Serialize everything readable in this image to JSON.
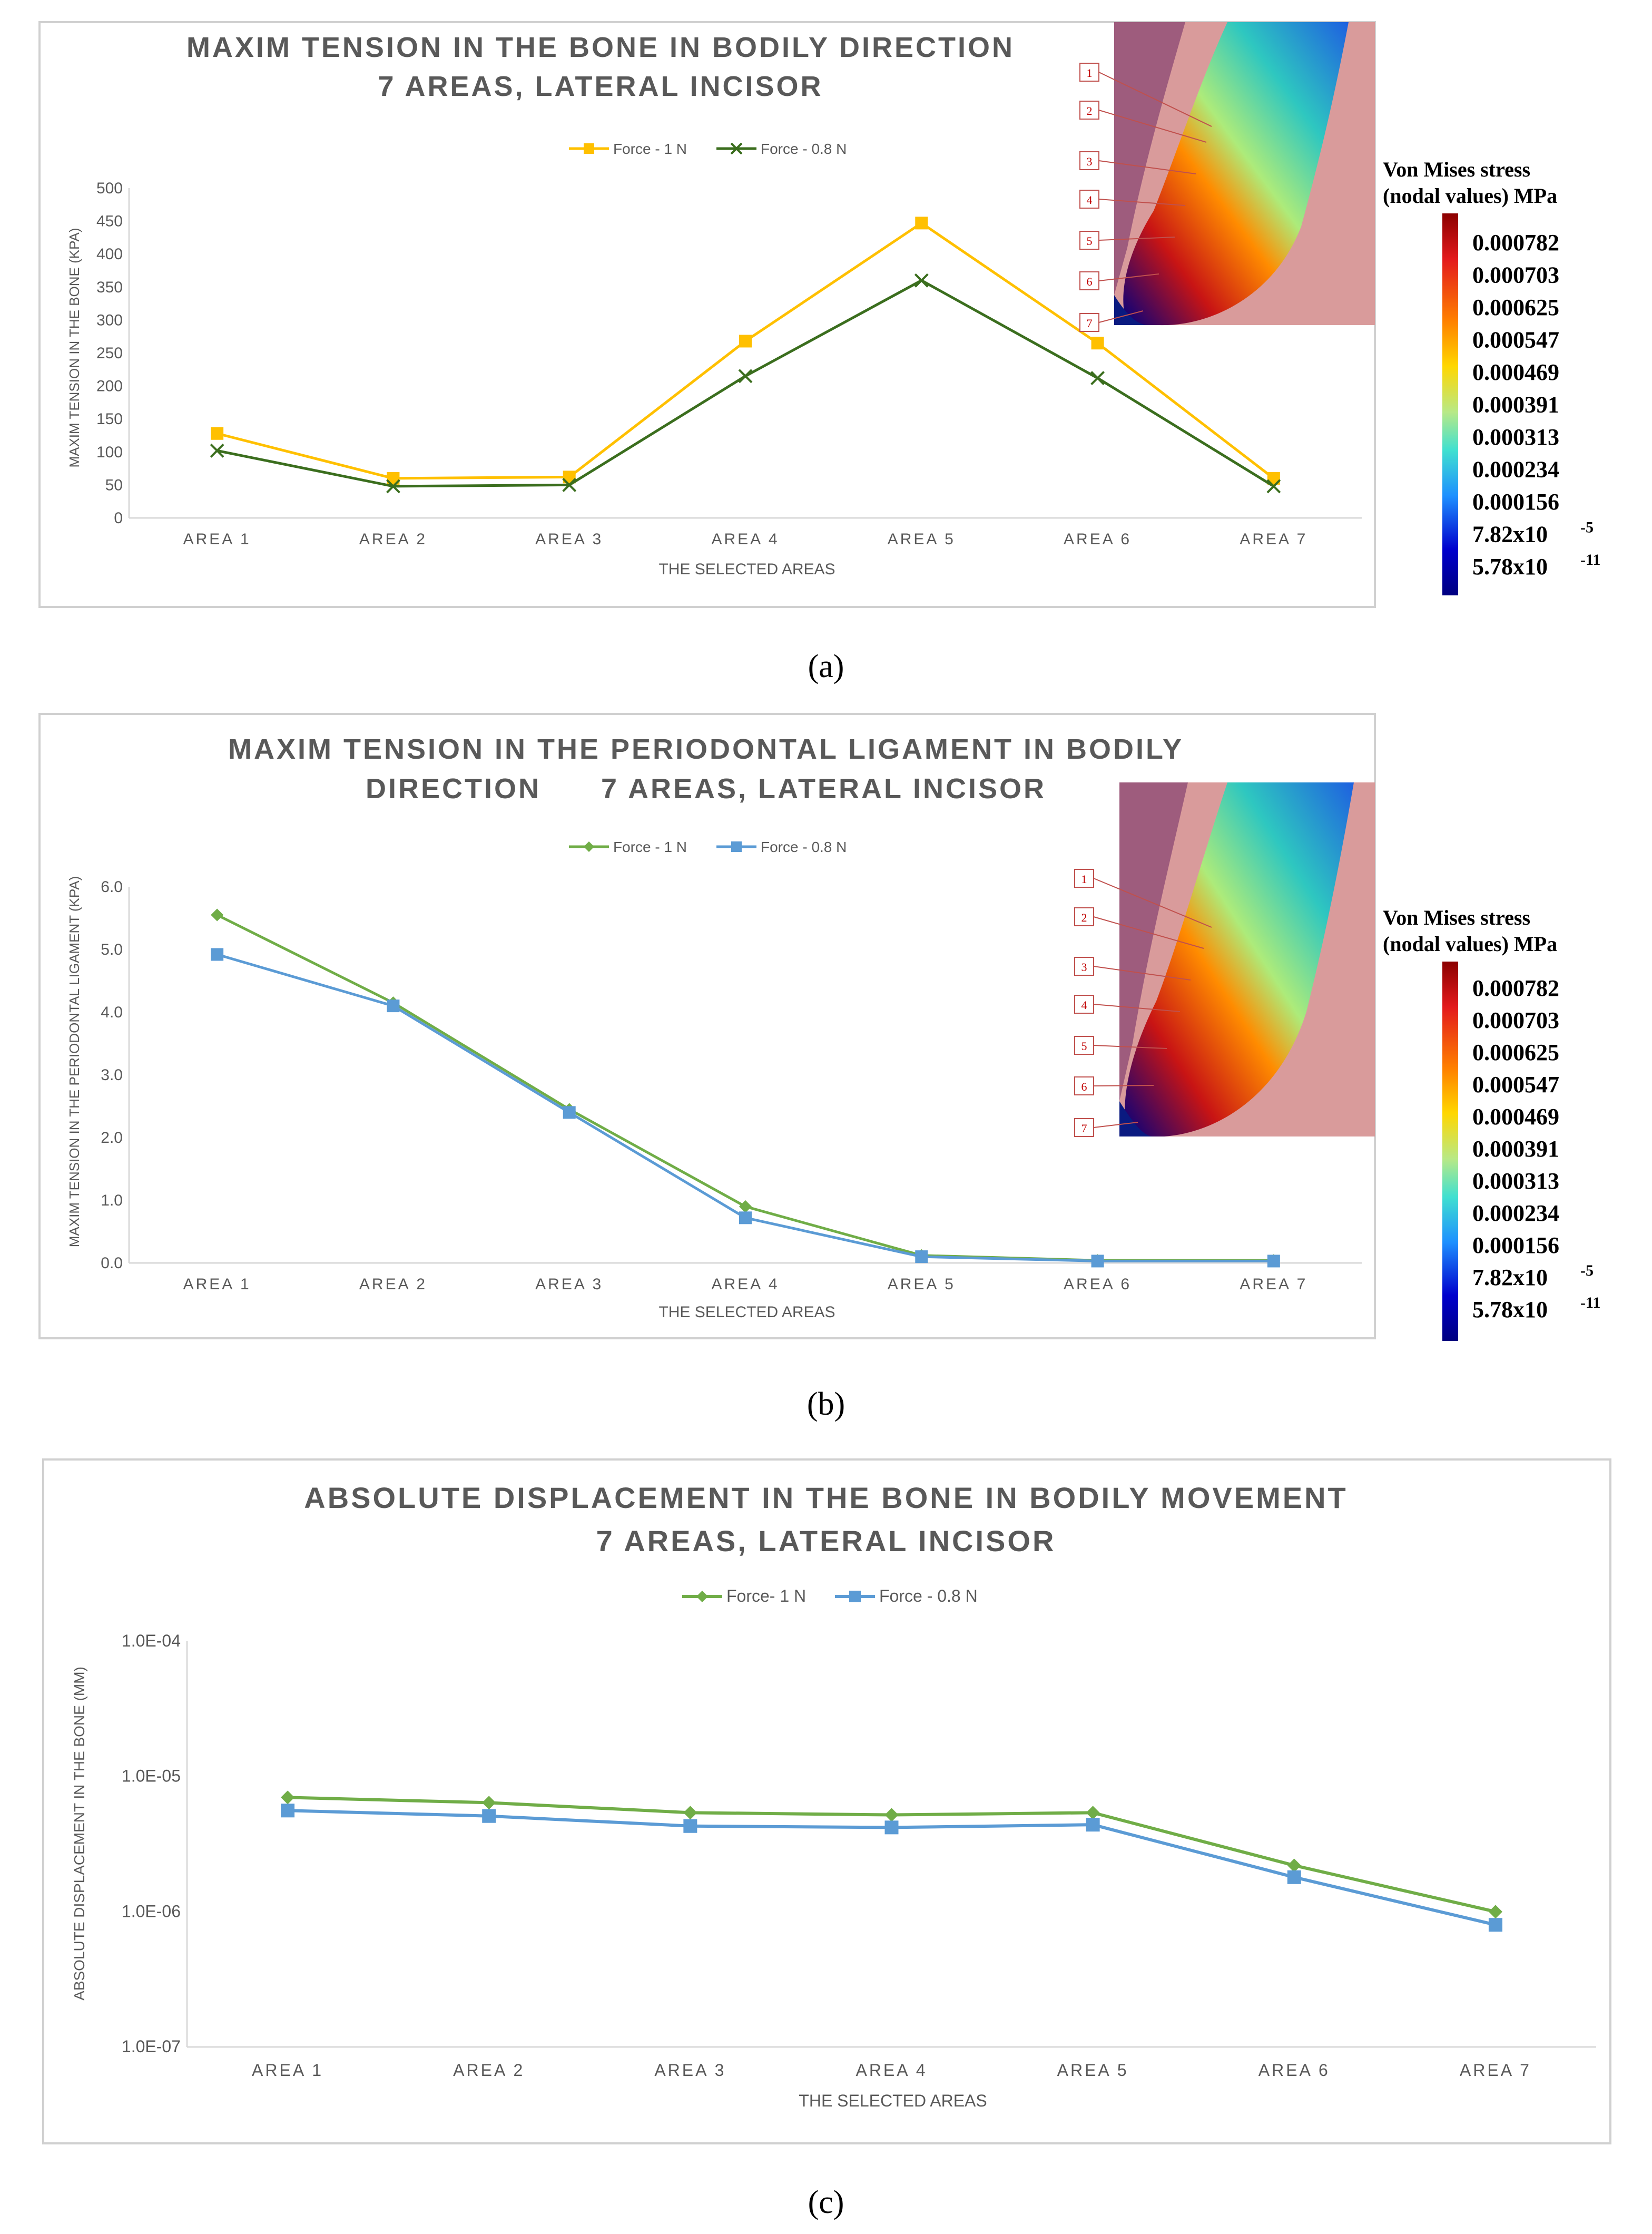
{
  "chart_data": [
    {
      "type": "line",
      "panel_label": "(a)",
      "title_lines": [
        "MAXIM TENSION IN THE BONE IN BODILY DIRECTION",
        "7 AREAS, LATERAL INCISOR"
      ],
      "xlabel": "THE SELECTED AREAS",
      "ylabel": "MAXIM TENSION IN THE BONE (KPA)",
      "categories": [
        "AREA 1",
        "AREA 2",
        "AREA 3",
        "AREA 4",
        "AREA 5",
        "AREA 6",
        "AREA 7"
      ],
      "ylim": [
        0,
        500
      ],
      "yticks": [
        "0",
        "50",
        "100",
        "150",
        "200",
        "250",
        "300",
        "350",
        "400",
        "450",
        "500"
      ],
      "yscale": "linear",
      "series": [
        {
          "name": "Force - 1 N",
          "color": "#FFC000",
          "marker": "square",
          "values": [
            128,
            60,
            62,
            268,
            447,
            265,
            60
          ]
        },
        {
          "name": "Force - 0.8 N",
          "color": "#3B6E1E",
          "marker": "x",
          "values": [
            102,
            48,
            50,
            215,
            360,
            212,
            48
          ]
        }
      ],
      "legend": "top"
    },
    {
      "type": "line",
      "panel_label": "(b)",
      "title_lines": [
        "MAXIM TENSION IN THE PERIODONTAL LIGAMENT IN BODILY",
        "DIRECTION      7 AREAS, LATERAL INCISOR"
      ],
      "xlabel": "THE SELECTED AREAS",
      "ylabel": "MAXIM TENSION IN THE PERIODONTAL LIGAMENT (KPA)",
      "categories": [
        "AREA 1",
        "AREA 2",
        "AREA 3",
        "AREA 4",
        "AREA 5",
        "AREA 6",
        "AREA 7"
      ],
      "ylim": [
        0,
        6
      ],
      "yticks": [
        "0.0",
        "1.0",
        "2.0",
        "3.0",
        "4.0",
        "5.0",
        "6.0"
      ],
      "yscale": "linear",
      "series": [
        {
          "name": "Force - 1 N",
          "color": "#70AD47",
          "marker": "diamond",
          "values": [
            5.55,
            4.15,
            2.45,
            0.9,
            0.12,
            0.04,
            0.04
          ]
        },
        {
          "name": "Force - 0.8 N",
          "color": "#5B9BD5",
          "marker": "square",
          "values": [
            4.92,
            4.1,
            2.4,
            0.72,
            0.1,
            0.03,
            0.03
          ]
        }
      ],
      "legend": "top"
    },
    {
      "type": "line",
      "panel_label": "(c)",
      "title_lines": [
        "ABSOLUTE DISPLACEMENT IN THE BONE IN BODILY MOVEMENT",
        "7 AREAS, LATERAL INCISOR"
      ],
      "xlabel": "THE SELECTED AREAS",
      "ylabel": "ABSOLUTE DISPLACEMENT IN THE BONE (MM)",
      "categories": [
        "AREA 1",
        "AREA 2",
        "AREA 3",
        "AREA 4",
        "AREA 5",
        "AREA 6",
        "AREA 7"
      ],
      "ylim": [
        1e-07,
        0.0001
      ],
      "yticks": [
        "1.0E-07",
        "1.0E-06",
        "1.0E-05",
        "1.0E-04"
      ],
      "yscale": "log",
      "series": [
        {
          "name": "Force- 1 N",
          "color": "#70AD47",
          "marker": "diamond",
          "values": [
            7e-06,
            6.4e-06,
            5.4e-06,
            5.2e-06,
            5.4e-06,
            2.2e-06,
            1e-06
          ]
        },
        {
          "name": "Force - 0.8 N",
          "color": "#5B9BD5",
          "marker": "square",
          "values": [
            5.6e-06,
            5.1e-06,
            4.3e-06,
            4.2e-06,
            4.4e-06,
            1.8e-06,
            8e-07
          ]
        }
      ],
      "legend": "top"
    }
  ],
  "insets": [
    {
      "area_labels": [
        "1",
        "2",
        "3",
        "4",
        "5",
        "6",
        "7"
      ],
      "colorbar_title": [
        "Von Mises stress",
        "(nodal values) MPa"
      ],
      "colorbar_values": [
        "0.000782",
        "0.000703",
        "0.000625",
        "0.000547",
        "0.000469",
        "0.000391",
        "0.000313",
        "0.000234",
        "0.000156",
        "7.82x10",
        "5.78x10"
      ],
      "colorbar_exponents": [
        "-5",
        "-11"
      ]
    },
    {
      "area_labels": [
        "1",
        "2",
        "3",
        "4",
        "5",
        "6",
        "7"
      ],
      "colorbar_title": [
        "Von Mises stress",
        "(nodal values) MPa"
      ],
      "colorbar_values": [
        "0.000782",
        "0.000703",
        "0.000625",
        "0.000547",
        "0.000469",
        "0.000391",
        "0.000313",
        "0.000234",
        "0.000156",
        "7.82x10",
        "5.78x10"
      ],
      "colorbar_exponents": [
        "-5",
        "-11"
      ]
    }
  ],
  "colors": {
    "colorbar_stops": [
      "#8B0000",
      "#E31A1C",
      "#FF7F00",
      "#FFD700",
      "#B8E986",
      "#40E0D0",
      "#1E90FF",
      "#0000CD",
      "#000080"
    ],
    "inset_background": "#D99B9B",
    "inset_gum": "#9E5C7D",
    "frame_border": "#D9D9D9",
    "axis_text": "#595959"
  }
}
